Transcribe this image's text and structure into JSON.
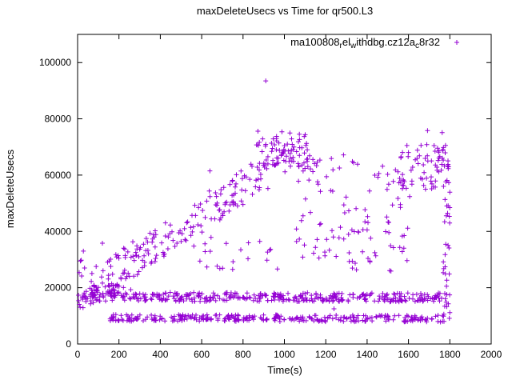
{
  "chart_data": {
    "type": "scatter",
    "title": "maxDeleteUsecs vs Time for qr500.L3",
    "xlabel": "Time(s)",
    "ylabel": "maxDeleteUsecs",
    "xlim": [
      0,
      2000
    ],
    "ylim": [
      0,
      110000
    ],
    "xticks": [
      0,
      200,
      400,
      600,
      800,
      1000,
      1200,
      1400,
      1600,
      1800,
      2000
    ],
    "yticks": [
      0,
      20000,
      40000,
      60000,
      80000,
      100000
    ],
    "grid": false,
    "marker": "plus",
    "marker_color": "#9400d3",
    "series_name": "ma100808_rel_withdbg.cz12a_c8r32",
    "legend": {
      "position": "top-right-inside",
      "label": "ma100808_rel_withdbg.cz12a_c8r32",
      "segments": [
        {
          "text": "ma100808"
        },
        {
          "text": "r",
          "sub": true
        },
        {
          "text": "el"
        },
        {
          "text": "w",
          "sub": true
        },
        {
          "text": "ithdbg.cz12a"
        },
        {
          "text": "c",
          "sub": true
        },
        {
          "text": "8r32"
        }
      ],
      "marker": "plus"
    },
    "seed": 1337,
    "point_clusters": [
      {
        "name": "mid-band",
        "count": 400,
        "x": [
          0,
          1800
        ],
        "y": [
          16800,
          16500
        ],
        "jitter": 1600
      },
      {
        "name": "low-band",
        "count": 300,
        "x": [
          150,
          1800
        ],
        "y": [
          9300,
          9000
        ],
        "jitter": 1200
      },
      {
        "name": "rising-arc",
        "count": 200,
        "x": [
          60,
          1050
        ],
        "y": [
          20000,
          68000
        ],
        "jitter": 6500
      },
      {
        "name": "peak",
        "count": 70,
        "x": [
          850,
          1150
        ],
        "y": [
          69000,
          69000
        ],
        "jitter": 6000
      },
      {
        "name": "post-peak-scatter",
        "count": 110,
        "x": [
          1050,
          1620
        ],
        "y": [
          47000,
          46000
        ],
        "jitter": 21000
      },
      {
        "name": "right-high-cluster",
        "count": 70,
        "x": [
          1550,
          1800
        ],
        "y": [
          63000,
          63000
        ],
        "jitter": 8000
      },
      {
        "name": "right-edge-column",
        "count": 35,
        "x": [
          1765,
          1800
        ],
        "y": [
          40000,
          40000
        ],
        "jitter": 30000
      },
      {
        "name": "left-start",
        "count": 12,
        "x": [
          0,
          45
        ],
        "y": [
          21000,
          21000
        ],
        "jitter": 9000
      },
      {
        "name": "below-arc",
        "count": 22,
        "x": [
          520,
          980
        ],
        "y": [
          34000,
          33000
        ],
        "jitter": 7000
      },
      {
        "name": "early-band-thick",
        "count": 45,
        "x": [
          60,
          260
        ],
        "y": [
          19200,
          19000
        ],
        "jitter": 2200
      }
    ],
    "outlier_points": [
      [
        910,
        93500
      ],
      [
        872,
        75600
      ],
      [
        988,
        75400
      ],
      [
        1692,
        75800
      ],
      [
        1763,
        75100
      ],
      [
        120,
        35800
      ],
      [
        28,
        33000
      ],
      [
        332,
        37500
      ],
      [
        1240,
        12500
      ],
      [
        640,
        61500
      ]
    ]
  }
}
